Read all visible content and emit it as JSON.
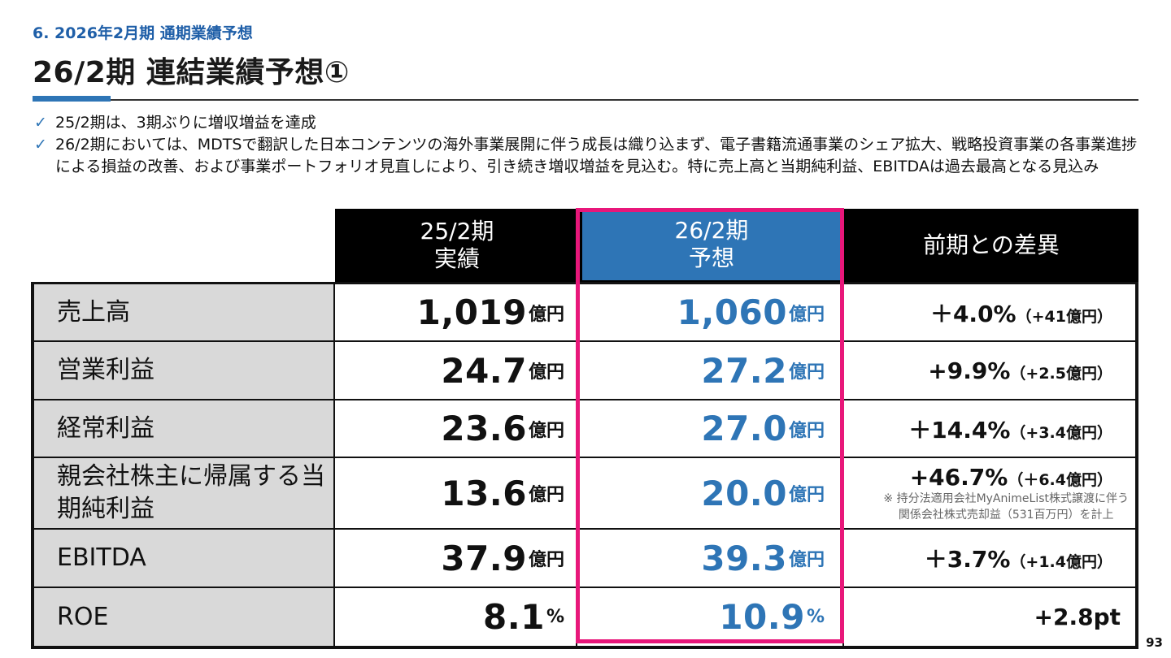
{
  "header": {
    "section": "6. 2026年2月期 通期業績予想",
    "title": "26/2期 連結業績予想①"
  },
  "bullets": [
    "25/2期は、3期ぶりに増収増益を達成",
    "26/2期においては、MDTSで翻訳した日本コンテンツの海外事業展開に伴う成長は織り込まず、電子書籍流通事業のシェア拡大、戦略投資事業の各事業進捗による損益の改善、および事業ポートフォリオ見直しにより、引き続き増収増益を見込む。特に売上高と当期純利益、EBITDAは過去最高となる見込み"
  ],
  "bullet_mark": "✓",
  "table": {
    "headers": {
      "actual": [
        "25/2期",
        "実績"
      ],
      "forecast": [
        "26/2期",
        "予想"
      ],
      "diff": "前期との差異"
    },
    "rows": [
      {
        "label": "売上高",
        "actual": "1,019",
        "actual_unit": "億円",
        "forecast": "1,060",
        "forecast_unit": "億円",
        "diff": "＋4.0%",
        "diff_sub": "（+41億円）"
      },
      {
        "label": "営業利益",
        "actual": "24.7",
        "actual_unit": "億円",
        "forecast": "27.2",
        "forecast_unit": "億円",
        "diff": "+9.9%",
        "diff_sub": "（+2.5億円）"
      },
      {
        "label": "経常利益",
        "actual": "23.6",
        "actual_unit": "億円",
        "forecast": "27.0",
        "forecast_unit": "億円",
        "diff": "＋14.4%",
        "diff_sub": "（+3.4億円）"
      },
      {
        "label": "親会社株主に帰属する当期純利益",
        "actual": "13.6",
        "actual_unit": "億円",
        "forecast": "20.0",
        "forecast_unit": "億円",
        "diff": "+46.7%",
        "diff_sub": "（＋6.4億円）",
        "note": [
          "※ 持分法適用会社MyAnimeList株式譲渡に伴う",
          "関係会社株式売却益（531百万円）を計上"
        ]
      },
      {
        "label": "EBITDA",
        "actual": "37.9",
        "actual_unit": "億円",
        "forecast": "39.3",
        "forecast_unit": "億円",
        "diff": "＋3.7%",
        "diff_sub": "（+1.4億円）"
      },
      {
        "label": "ROE",
        "actual": "8.1",
        "actual_unit": "%",
        "forecast": "10.9",
        "forecast_unit": "%",
        "diff": "+2.8pt",
        "diff_sub": ""
      }
    ]
  },
  "page_number": "93",
  "colors": {
    "accent": "#2e75b6",
    "highlight": "#e8177a",
    "label_bg": "#d9d9d9"
  }
}
